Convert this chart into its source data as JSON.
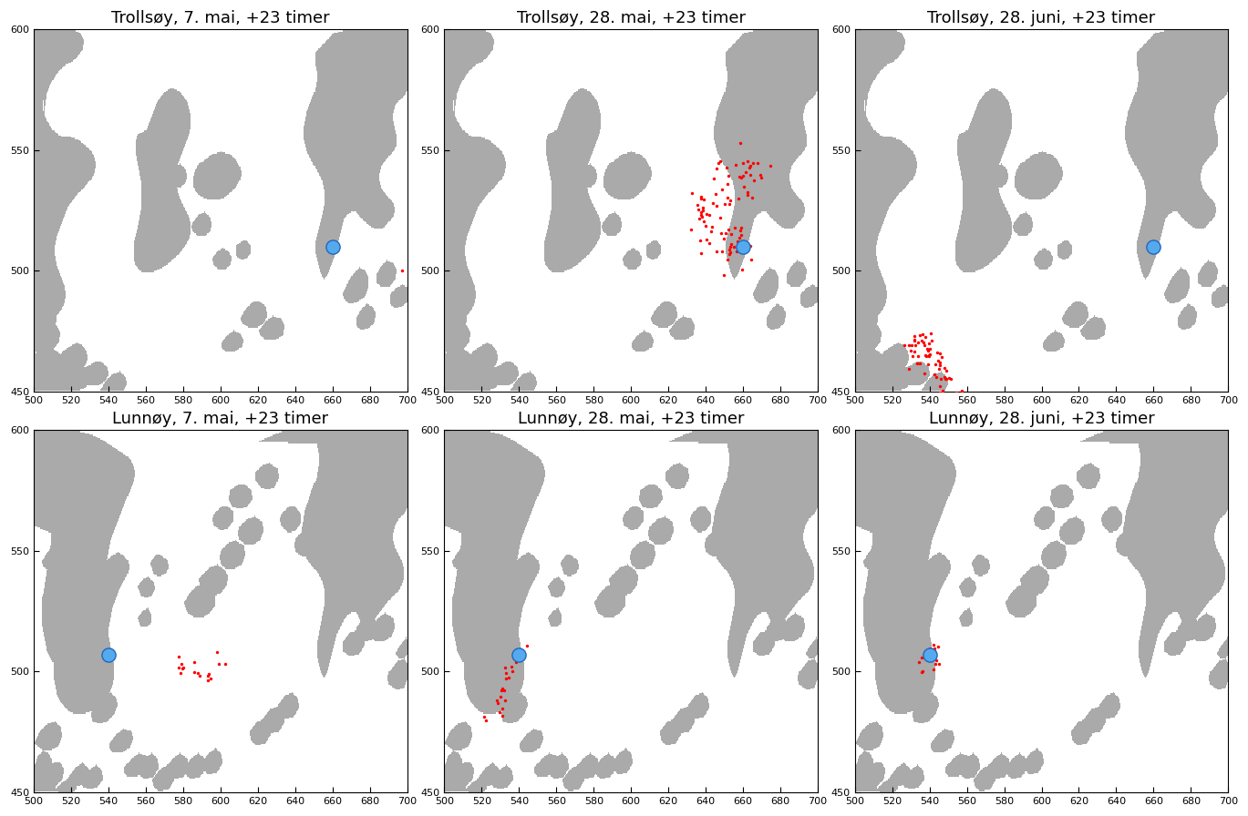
{
  "titles": [
    "Trollsøy, 7. mai, +23 timer",
    "Trollsøy, 28. mai, +23 timer",
    "Trollsøy, 28. juni, +23 timer",
    "Lunnøy, 7. mai, +23 timer",
    "Lunnøy, 28. mai, +23 timer",
    "Lunnøy, 28. juni, +23 timer"
  ],
  "xlim": [
    500,
    700
  ],
  "ylim": [
    450,
    600
  ],
  "xticks": [
    500,
    520,
    540,
    560,
    580,
    600,
    620,
    640,
    660,
    680,
    700
  ],
  "yticks": [
    450,
    500,
    550,
    600
  ],
  "trollsoy_blue": [
    660,
    510
  ],
  "lunnoy_blue": [
    540,
    507
  ],
  "land_color": "#aaaaaa",
  "water_color": "#ffffff",
  "particle_color": "#ff0000",
  "blue_fill": "#55aaee",
  "blue_edge": "#2266bb",
  "title_fontsize": 13,
  "blue_size": 120
}
